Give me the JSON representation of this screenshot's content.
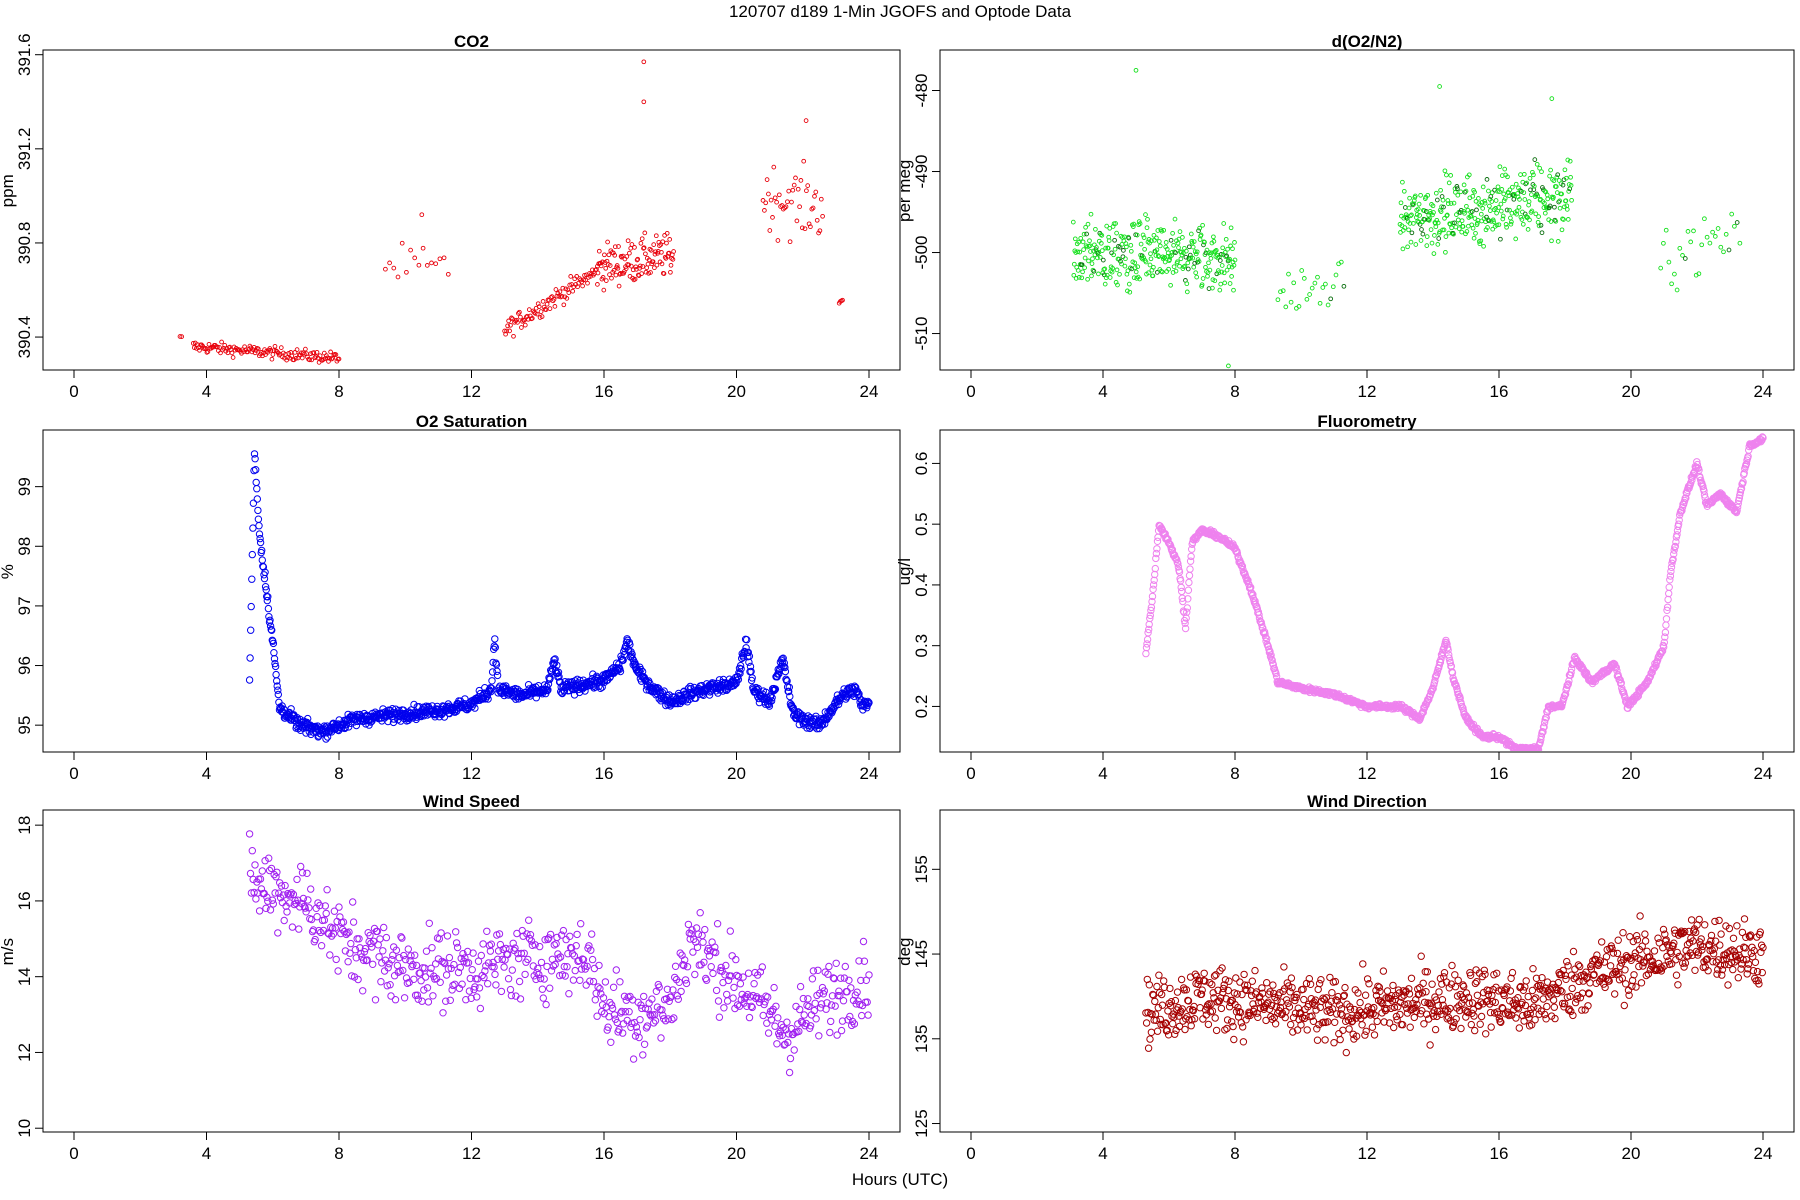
{
  "page_title": "120707   d189   1-Min  JGOFS and Optode Data",
  "x_axis_label": "Hours (UTC)",
  "chart_data": [
    {
      "id": "co2",
      "type": "scatter",
      "title": "CO2",
      "ylabel": "ppm",
      "color": "#e8000b",
      "xlim": [
        0,
        24
      ],
      "ylim": [
        390.26,
        391.62
      ],
      "xticks": [
        0,
        4,
        8,
        12,
        16,
        20,
        24
      ],
      "yticks": [
        390.4,
        390.8,
        391.2,
        391.6
      ],
      "ytick_labels": [
        "390.4",
        "390.8",
        "391.2",
        "391.6"
      ],
      "segments": [
        {
          "t0": 3.2,
          "t1": 3.25,
          "n": 2,
          "v0": 390.4,
          "v1": 390.4,
          "noise": 0.005
        },
        {
          "t0": 3.6,
          "t1": 8.0,
          "n": 140,
          "v0": 390.36,
          "v1": 390.31,
          "noise": 0.025
        },
        {
          "t0": 9.4,
          "t1": 11.3,
          "n": 16,
          "v0": 390.7,
          "v1": 390.68,
          "noise": 0.1
        },
        {
          "t0": 13.0,
          "t1": 15.8,
          "n": 95,
          "v0": 390.43,
          "v1": 390.68,
          "noise": 0.04
        },
        {
          "t0": 15.8,
          "t1": 18.1,
          "n": 120,
          "v0": 390.7,
          "v1": 390.75,
          "noise": 0.09
        },
        {
          "t0": 20.8,
          "t1": 22.6,
          "n": 45,
          "v0": 391.0,
          "v1": 390.95,
          "noise": 0.14
        },
        {
          "t0": 23.1,
          "t1": 23.2,
          "n": 4,
          "v0": 390.55,
          "v1": 390.55,
          "noise": 0.01
        }
      ],
      "highlights": [
        {
          "t": 17.2,
          "v": 391.57
        },
        {
          "t": 17.2,
          "v": 391.4
        },
        {
          "t": 22.1,
          "v": 391.32
        },
        {
          "t": 10.5,
          "v": 390.92
        }
      ]
    },
    {
      "id": "o2n2",
      "type": "scatter",
      "title": "d(O2/N2)",
      "ylabel": "per meg",
      "color": "#14e01c",
      "color2": "#0a6e0e",
      "xlim": [
        0,
        24
      ],
      "ylim": [
        -514.5,
        -475
      ],
      "xticks": [
        0,
        4,
        8,
        12,
        16,
        20,
        24
      ],
      "yticks": [
        -480,
        -490,
        -500,
        -510
      ],
      "ytick_labels": [
        "-480",
        "-490",
        "-500",
        "-510"
      ],
      "segments": [
        {
          "t0": 3.1,
          "t1": 8.0,
          "n": 330,
          "v0": -500,
          "v1": -501,
          "noise": 4.2
        },
        {
          "t0": 9.3,
          "t1": 11.3,
          "n": 26,
          "v0": -505,
          "v1": -504,
          "noise": 2.5
        },
        {
          "t0": 13.0,
          "t1": 18.2,
          "n": 360,
          "v0": -496,
          "v1": -493,
          "noise": 4.2
        },
        {
          "t0": 20.9,
          "t1": 23.3,
          "n": 30,
          "v0": -501,
          "v1": -497,
          "noise": 3.5
        }
      ],
      "highlights": [
        {
          "t": 5.0,
          "v": -477.5
        },
        {
          "t": 14.2,
          "v": -479.5
        },
        {
          "t": 7.8,
          "v": -514
        },
        {
          "t": 17.6,
          "v": -481
        }
      ]
    },
    {
      "id": "o2sat",
      "type": "scatter",
      "title": "O2 Saturation",
      "ylabel": "%",
      "color": "#0000ee",
      "xlim": [
        0,
        24
      ],
      "ylim": [
        94.55,
        99.95
      ],
      "xticks": [
        0,
        4,
        8,
        12,
        16,
        20,
        24
      ],
      "yticks": [
        95,
        96,
        97,
        98,
        99
      ],
      "ytick_labels": [
        "95",
        "96",
        "97",
        "98",
        "99"
      ],
      "profile": [
        [
          5.3,
          95.7
        ],
        [
          5.45,
          99.6
        ],
        [
          5.6,
          98.2
        ],
        [
          5.8,
          97.3
        ],
        [
          6.0,
          96.4
        ],
        [
          6.2,
          95.3
        ],
        [
          6.8,
          95.0
        ],
        [
          7.5,
          94.9
        ],
        [
          8.5,
          95.1
        ],
        [
          10.0,
          95.2
        ],
        [
          11.0,
          95.25
        ],
        [
          12.0,
          95.35
        ],
        [
          12.6,
          95.6
        ],
        [
          12.7,
          96.5
        ],
        [
          12.8,
          95.6
        ],
        [
          13.5,
          95.5
        ],
        [
          14.3,
          95.6
        ],
        [
          14.5,
          96.1
        ],
        [
          14.7,
          95.6
        ],
        [
          15.5,
          95.7
        ],
        [
          16.0,
          95.75
        ],
        [
          16.5,
          96.0
        ],
        [
          16.7,
          96.4
        ],
        [
          17.0,
          95.9
        ],
        [
          17.5,
          95.6
        ],
        [
          18.0,
          95.4
        ],
        [
          19.0,
          95.6
        ],
        [
          20.0,
          95.7
        ],
        [
          20.3,
          96.4
        ],
        [
          20.5,
          95.6
        ],
        [
          21.0,
          95.4
        ],
        [
          21.4,
          96.1
        ],
        [
          21.7,
          95.2
        ],
        [
          22.0,
          95.1
        ],
        [
          22.5,
          95.0
        ],
        [
          23.2,
          95.5
        ],
        [
          23.6,
          95.6
        ],
        [
          23.8,
          95.3
        ],
        [
          24.0,
          95.4
        ]
      ],
      "t_start": 5.3,
      "t_end": 24.0,
      "n": 1120,
      "noise": 0.11
    },
    {
      "id": "fluor",
      "type": "scatter",
      "title": "Fluorometry",
      "ylabel": "ug/l",
      "color": "#ee82ee",
      "xlim": [
        0,
        24
      ],
      "ylim": [
        0.125,
        0.655
      ],
      "xticks": [
        0,
        4,
        8,
        12,
        16,
        20,
        24
      ],
      "yticks": [
        0.2,
        0.3,
        0.4,
        0.5,
        0.6
      ],
      "ytick_labels": [
        "0.2",
        "0.3",
        "0.4",
        "0.5",
        "0.6"
      ],
      "profile": [
        [
          5.3,
          0.29
        ],
        [
          5.5,
          0.38
        ],
        [
          5.7,
          0.5
        ],
        [
          6.0,
          0.47
        ],
        [
          6.3,
          0.43
        ],
        [
          6.5,
          0.33
        ],
        [
          6.7,
          0.47
        ],
        [
          7.0,
          0.49
        ],
        [
          7.5,
          0.48
        ],
        [
          8.0,
          0.46
        ],
        [
          8.5,
          0.39
        ],
        [
          9.0,
          0.3
        ],
        [
          9.3,
          0.24
        ],
        [
          10.0,
          0.23
        ],
        [
          11.0,
          0.22
        ],
        [
          12.0,
          0.2
        ],
        [
          13.0,
          0.2
        ],
        [
          13.6,
          0.18
        ],
        [
          14.0,
          0.23
        ],
        [
          14.4,
          0.31
        ],
        [
          14.6,
          0.25
        ],
        [
          15.0,
          0.18
        ],
        [
          15.5,
          0.15
        ],
        [
          16.0,
          0.15
        ],
        [
          16.5,
          0.13
        ],
        [
          17.2,
          0.13
        ],
        [
          17.5,
          0.2
        ],
        [
          17.9,
          0.2
        ],
        [
          18.3,
          0.28
        ],
        [
          18.8,
          0.24
        ],
        [
          19.5,
          0.27
        ],
        [
          19.9,
          0.2
        ],
        [
          20.5,
          0.24
        ],
        [
          21.0,
          0.3
        ],
        [
          21.2,
          0.42
        ],
        [
          21.5,
          0.52
        ],
        [
          22.0,
          0.6
        ],
        [
          22.3,
          0.53
        ],
        [
          22.7,
          0.55
        ],
        [
          23.2,
          0.52
        ],
        [
          23.6,
          0.63
        ],
        [
          24.0,
          0.64
        ]
      ],
      "t_start": 5.3,
      "t_end": 24.0,
      "n": 1120,
      "noise": 0.004
    },
    {
      "id": "wspd",
      "type": "scatter",
      "title": "Wind Speed",
      "ylabel": "m/s",
      "color": "#a020f0",
      "xlim": [
        0,
        24
      ],
      "ylim": [
        9.9,
        18.4
      ],
      "xticks": [
        0,
        4,
        8,
        12,
        16,
        20,
        24
      ],
      "yticks": [
        10,
        12,
        14,
        16,
        18
      ],
      "ytick_labels": [
        "10",
        "12",
        "14",
        "16",
        "18"
      ],
      "profile": [
        [
          5.3,
          16.5
        ],
        [
          7.0,
          16.0
        ],
        [
          8.0,
          15.0
        ],
        [
          10.0,
          14.2
        ],
        [
          12.0,
          14.2
        ],
        [
          14.0,
          14.5
        ],
        [
          15.5,
          14.6
        ],
        [
          16.0,
          13.2
        ],
        [
          17.0,
          13.0
        ],
        [
          18.0,
          13.2
        ],
        [
          18.6,
          15.0
        ],
        [
          19.5,
          14.2
        ],
        [
          20.5,
          13.5
        ],
        [
          21.5,
          12.5
        ],
        [
          22.5,
          13.3
        ],
        [
          24.0,
          14.0
        ]
      ],
      "t_start": 5.3,
      "t_end": 24.0,
      "n": 680,
      "noise": 1.0
    },
    {
      "id": "wdir",
      "type": "scatter",
      "title": "Wind Direction",
      "ylabel": "deg",
      "color": "#a50000",
      "xlim": [
        0,
        24
      ],
      "ylim": [
        124,
        162
      ],
      "xticks": [
        0,
        4,
        8,
        12,
        16,
        20,
        24
      ],
      "yticks": [
        125,
        135,
        145,
        155
      ],
      "ytick_labels": [
        "125",
        "135",
        "145",
        "155"
      ],
      "profile": [
        [
          5.3,
          138
        ],
        [
          7.0,
          140
        ],
        [
          9.0,
          139
        ],
        [
          11.0,
          138
        ],
        [
          13.0,
          139
        ],
        [
          15.0,
          140
        ],
        [
          17.0,
          139
        ],
        [
          18.5,
          142
        ],
        [
          20.0,
          144
        ],
        [
          22.0,
          146
        ],
        [
          24.0,
          145
        ]
      ],
      "t_start": 5.3,
      "t_end": 24.0,
      "n": 900,
      "noise": 3.8
    }
  ]
}
